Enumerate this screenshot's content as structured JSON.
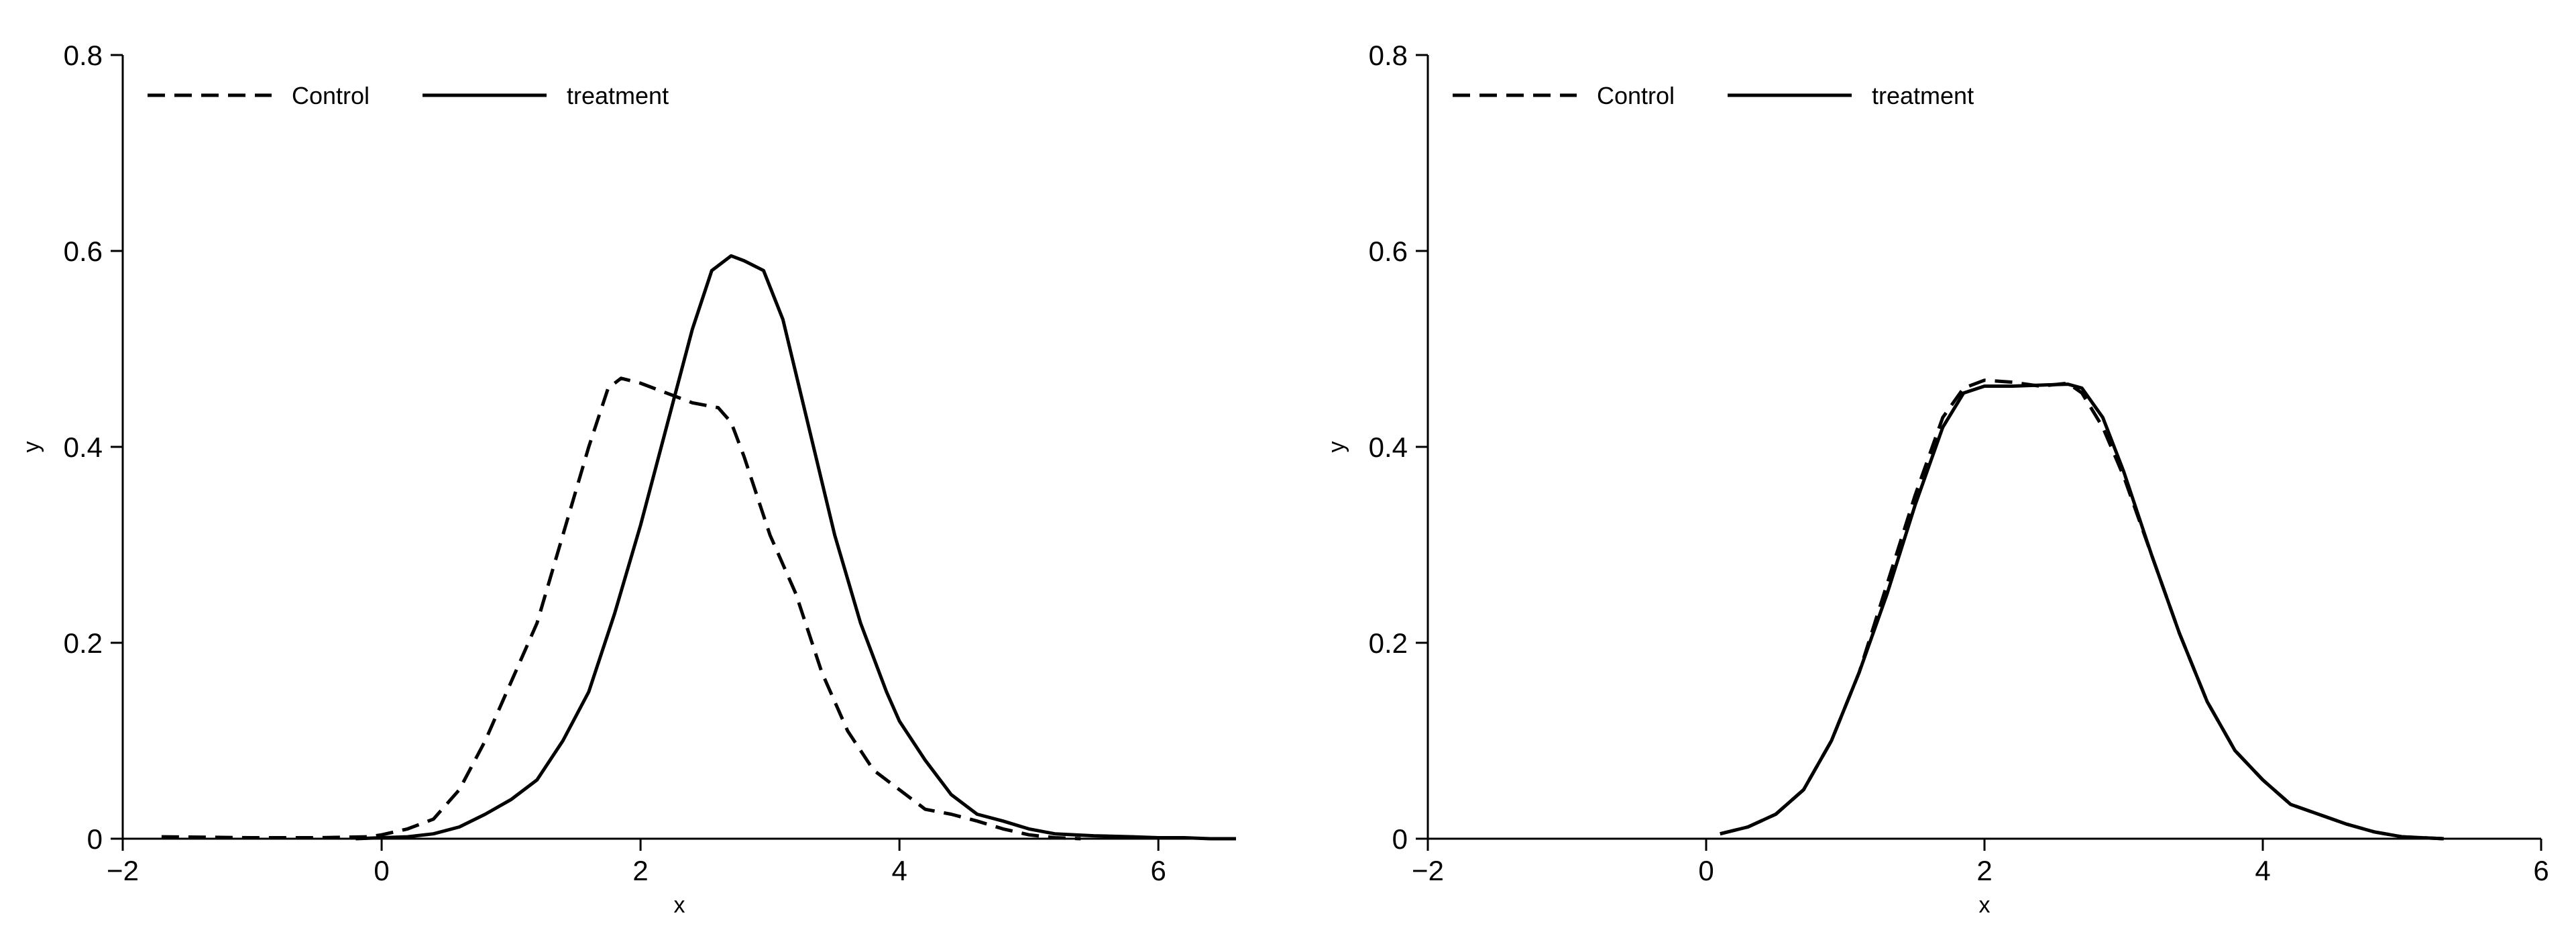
{
  "chart_data": [
    {
      "type": "line",
      "xlabel": "x",
      "ylabel": "y",
      "xlim": [
        -2,
        6.6
      ],
      "ylim": [
        0,
        0.8
      ],
      "xticks": [
        -2,
        0,
        2,
        4,
        6
      ],
      "xtick_labels": [
        "−2",
        "0",
        "2",
        "4",
        "6"
      ],
      "yticks": [
        0,
        0.2,
        0.4,
        0.6,
        0.8
      ],
      "ytick_labels": [
        "0",
        "0.2",
        "0.4",
        "0.6",
        "0.8"
      ],
      "grid": false,
      "legend_position": "top-left",
      "series": [
        {
          "name": "Control",
          "style": "dashed",
          "color": "#000000",
          "x": [
            -1.7,
            -1.0,
            -0.5,
            -0.1,
            0.0,
            0.2,
            0.4,
            0.6,
            0.8,
            1.0,
            1.2,
            1.4,
            1.6,
            1.75,
            1.85,
            2.0,
            2.2,
            2.4,
            2.6,
            2.7,
            2.8,
            3.0,
            3.2,
            3.4,
            3.6,
            3.8,
            4.0,
            4.2,
            4.4,
            4.6,
            4.8,
            5.0,
            5.2,
            5.4
          ],
          "y": [
            0.002,
            0.001,
            0.001,
            0.002,
            0.004,
            0.01,
            0.02,
            0.05,
            0.1,
            0.16,
            0.22,
            0.31,
            0.4,
            0.46,
            0.47,
            0.465,
            0.455,
            0.445,
            0.44,
            0.425,
            0.39,
            0.31,
            0.25,
            0.17,
            0.11,
            0.07,
            0.05,
            0.03,
            0.025,
            0.018,
            0.01,
            0.004,
            0.001,
            0.0
          ]
        },
        {
          "name": "treatment",
          "style": "solid",
          "color": "#000000",
          "x": [
            -0.2,
            0.0,
            0.2,
            0.4,
            0.6,
            0.8,
            1.0,
            1.2,
            1.4,
            1.6,
            1.8,
            2.0,
            2.2,
            2.4,
            2.55,
            2.7,
            2.8,
            2.95,
            3.1,
            3.3,
            3.5,
            3.7,
            3.9,
            4.0,
            4.2,
            4.4,
            4.6,
            4.8,
            5.0,
            5.2,
            5.5,
            5.8,
            6.0,
            6.2,
            6.4,
            6.6
          ],
          "y": [
            0.0,
            0.001,
            0.002,
            0.005,
            0.012,
            0.025,
            0.04,
            0.06,
            0.1,
            0.15,
            0.23,
            0.32,
            0.42,
            0.52,
            0.58,
            0.595,
            0.59,
            0.58,
            0.53,
            0.42,
            0.31,
            0.22,
            0.15,
            0.12,
            0.08,
            0.045,
            0.025,
            0.018,
            0.01,
            0.005,
            0.003,
            0.002,
            0.001,
            0.001,
            0.0,
            0.0
          ]
        }
      ]
    },
    {
      "type": "line",
      "xlabel": "x",
      "ylabel": "y",
      "xlim": [
        -2,
        6
      ],
      "ylim": [
        0,
        0.8
      ],
      "xticks": [
        -2,
        0,
        2,
        4,
        6
      ],
      "xtick_labels": [
        "−2",
        "0",
        "2",
        "4",
        "6"
      ],
      "yticks": [
        0,
        0.2,
        0.4,
        0.6,
        0.8
      ],
      "ytick_labels": [
        "0",
        "0.2",
        "0.4",
        "0.6",
        "0.8"
      ],
      "grid": false,
      "legend_position": "top-left",
      "series": [
        {
          "name": "Control",
          "style": "dashed",
          "color": "#000000",
          "x": [
            0.1,
            0.3,
            0.5,
            0.7,
            0.9,
            1.1,
            1.3,
            1.5,
            1.7,
            1.85,
            2.0,
            2.2,
            2.4,
            2.6,
            2.7,
            2.85,
            3.0,
            3.2,
            3.4,
            3.6,
            3.8,
            4.0,
            4.2,
            4.4,
            4.6,
            4.8,
            5.0,
            5.3
          ],
          "y": [
            0.005,
            0.012,
            0.025,
            0.05,
            0.1,
            0.17,
            0.26,
            0.35,
            0.43,
            0.46,
            0.468,
            0.466,
            0.462,
            0.465,
            0.455,
            0.42,
            0.37,
            0.29,
            0.21,
            0.14,
            0.09,
            0.06,
            0.035,
            0.025,
            0.015,
            0.007,
            0.002,
            0.0
          ]
        },
        {
          "name": "treatment",
          "style": "solid",
          "color": "#000000",
          "x": [
            0.1,
            0.3,
            0.5,
            0.7,
            0.9,
            1.1,
            1.3,
            1.5,
            1.7,
            1.85,
            2.0,
            2.2,
            2.4,
            2.6,
            2.7,
            2.85,
            3.0,
            3.2,
            3.4,
            3.6,
            3.8,
            4.0,
            4.2,
            4.4,
            4.6,
            4.8,
            5.0,
            5.3
          ],
          "y": [
            0.005,
            0.012,
            0.025,
            0.05,
            0.1,
            0.17,
            0.25,
            0.34,
            0.42,
            0.455,
            0.462,
            0.462,
            0.463,
            0.464,
            0.46,
            0.43,
            0.375,
            0.29,
            0.21,
            0.14,
            0.09,
            0.06,
            0.035,
            0.025,
            0.015,
            0.007,
            0.002,
            0.0
          ]
        }
      ]
    }
  ]
}
